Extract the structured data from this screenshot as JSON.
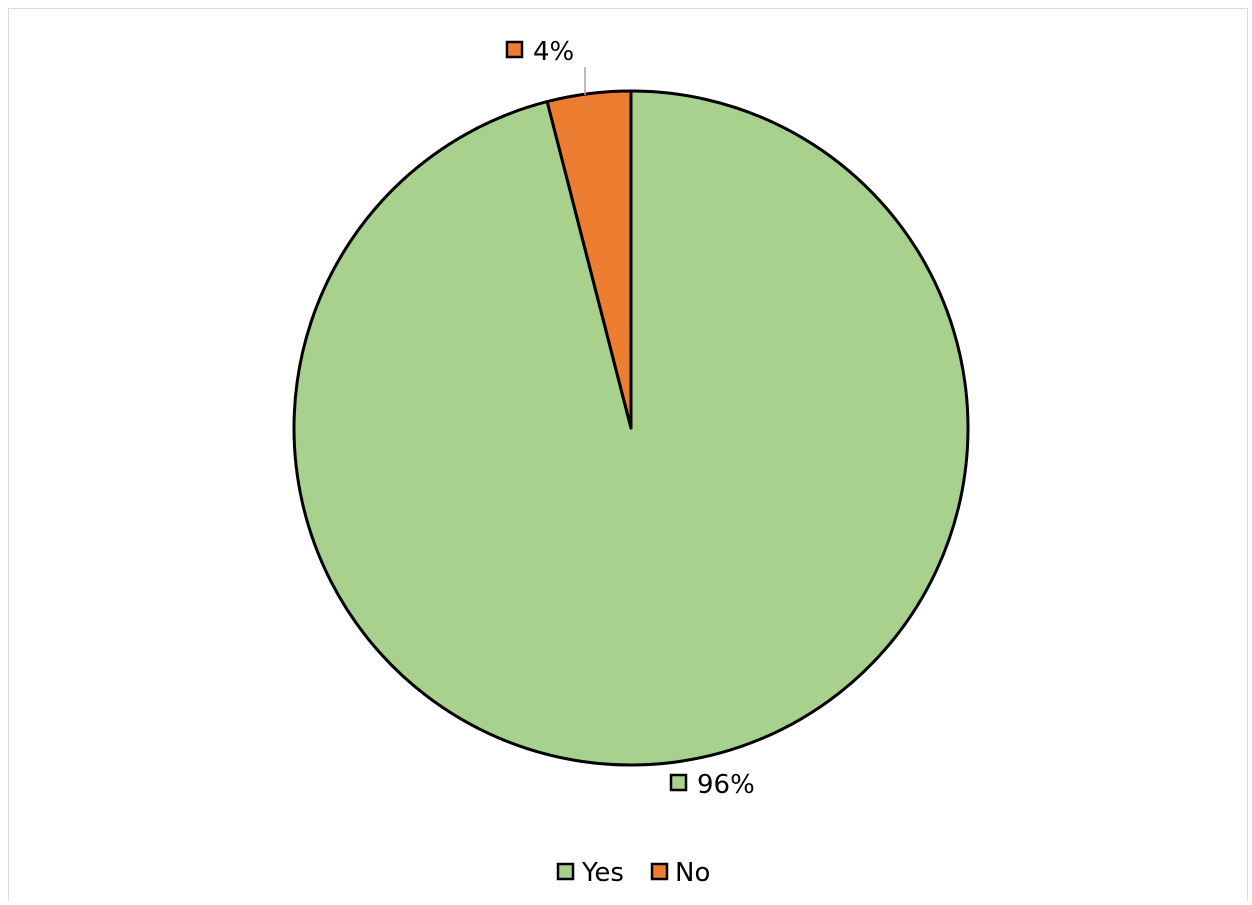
{
  "chart_data": {
    "type": "pie",
    "title": "",
    "categories": [
      "Yes",
      "No"
    ],
    "values": [
      96,
      4
    ],
    "data_labels": [
      "96%",
      "4%"
    ],
    "colors": [
      "#a9d18e",
      "#ed7d31"
    ],
    "legend_position": "bottom",
    "slice_border_color": "#000000"
  }
}
